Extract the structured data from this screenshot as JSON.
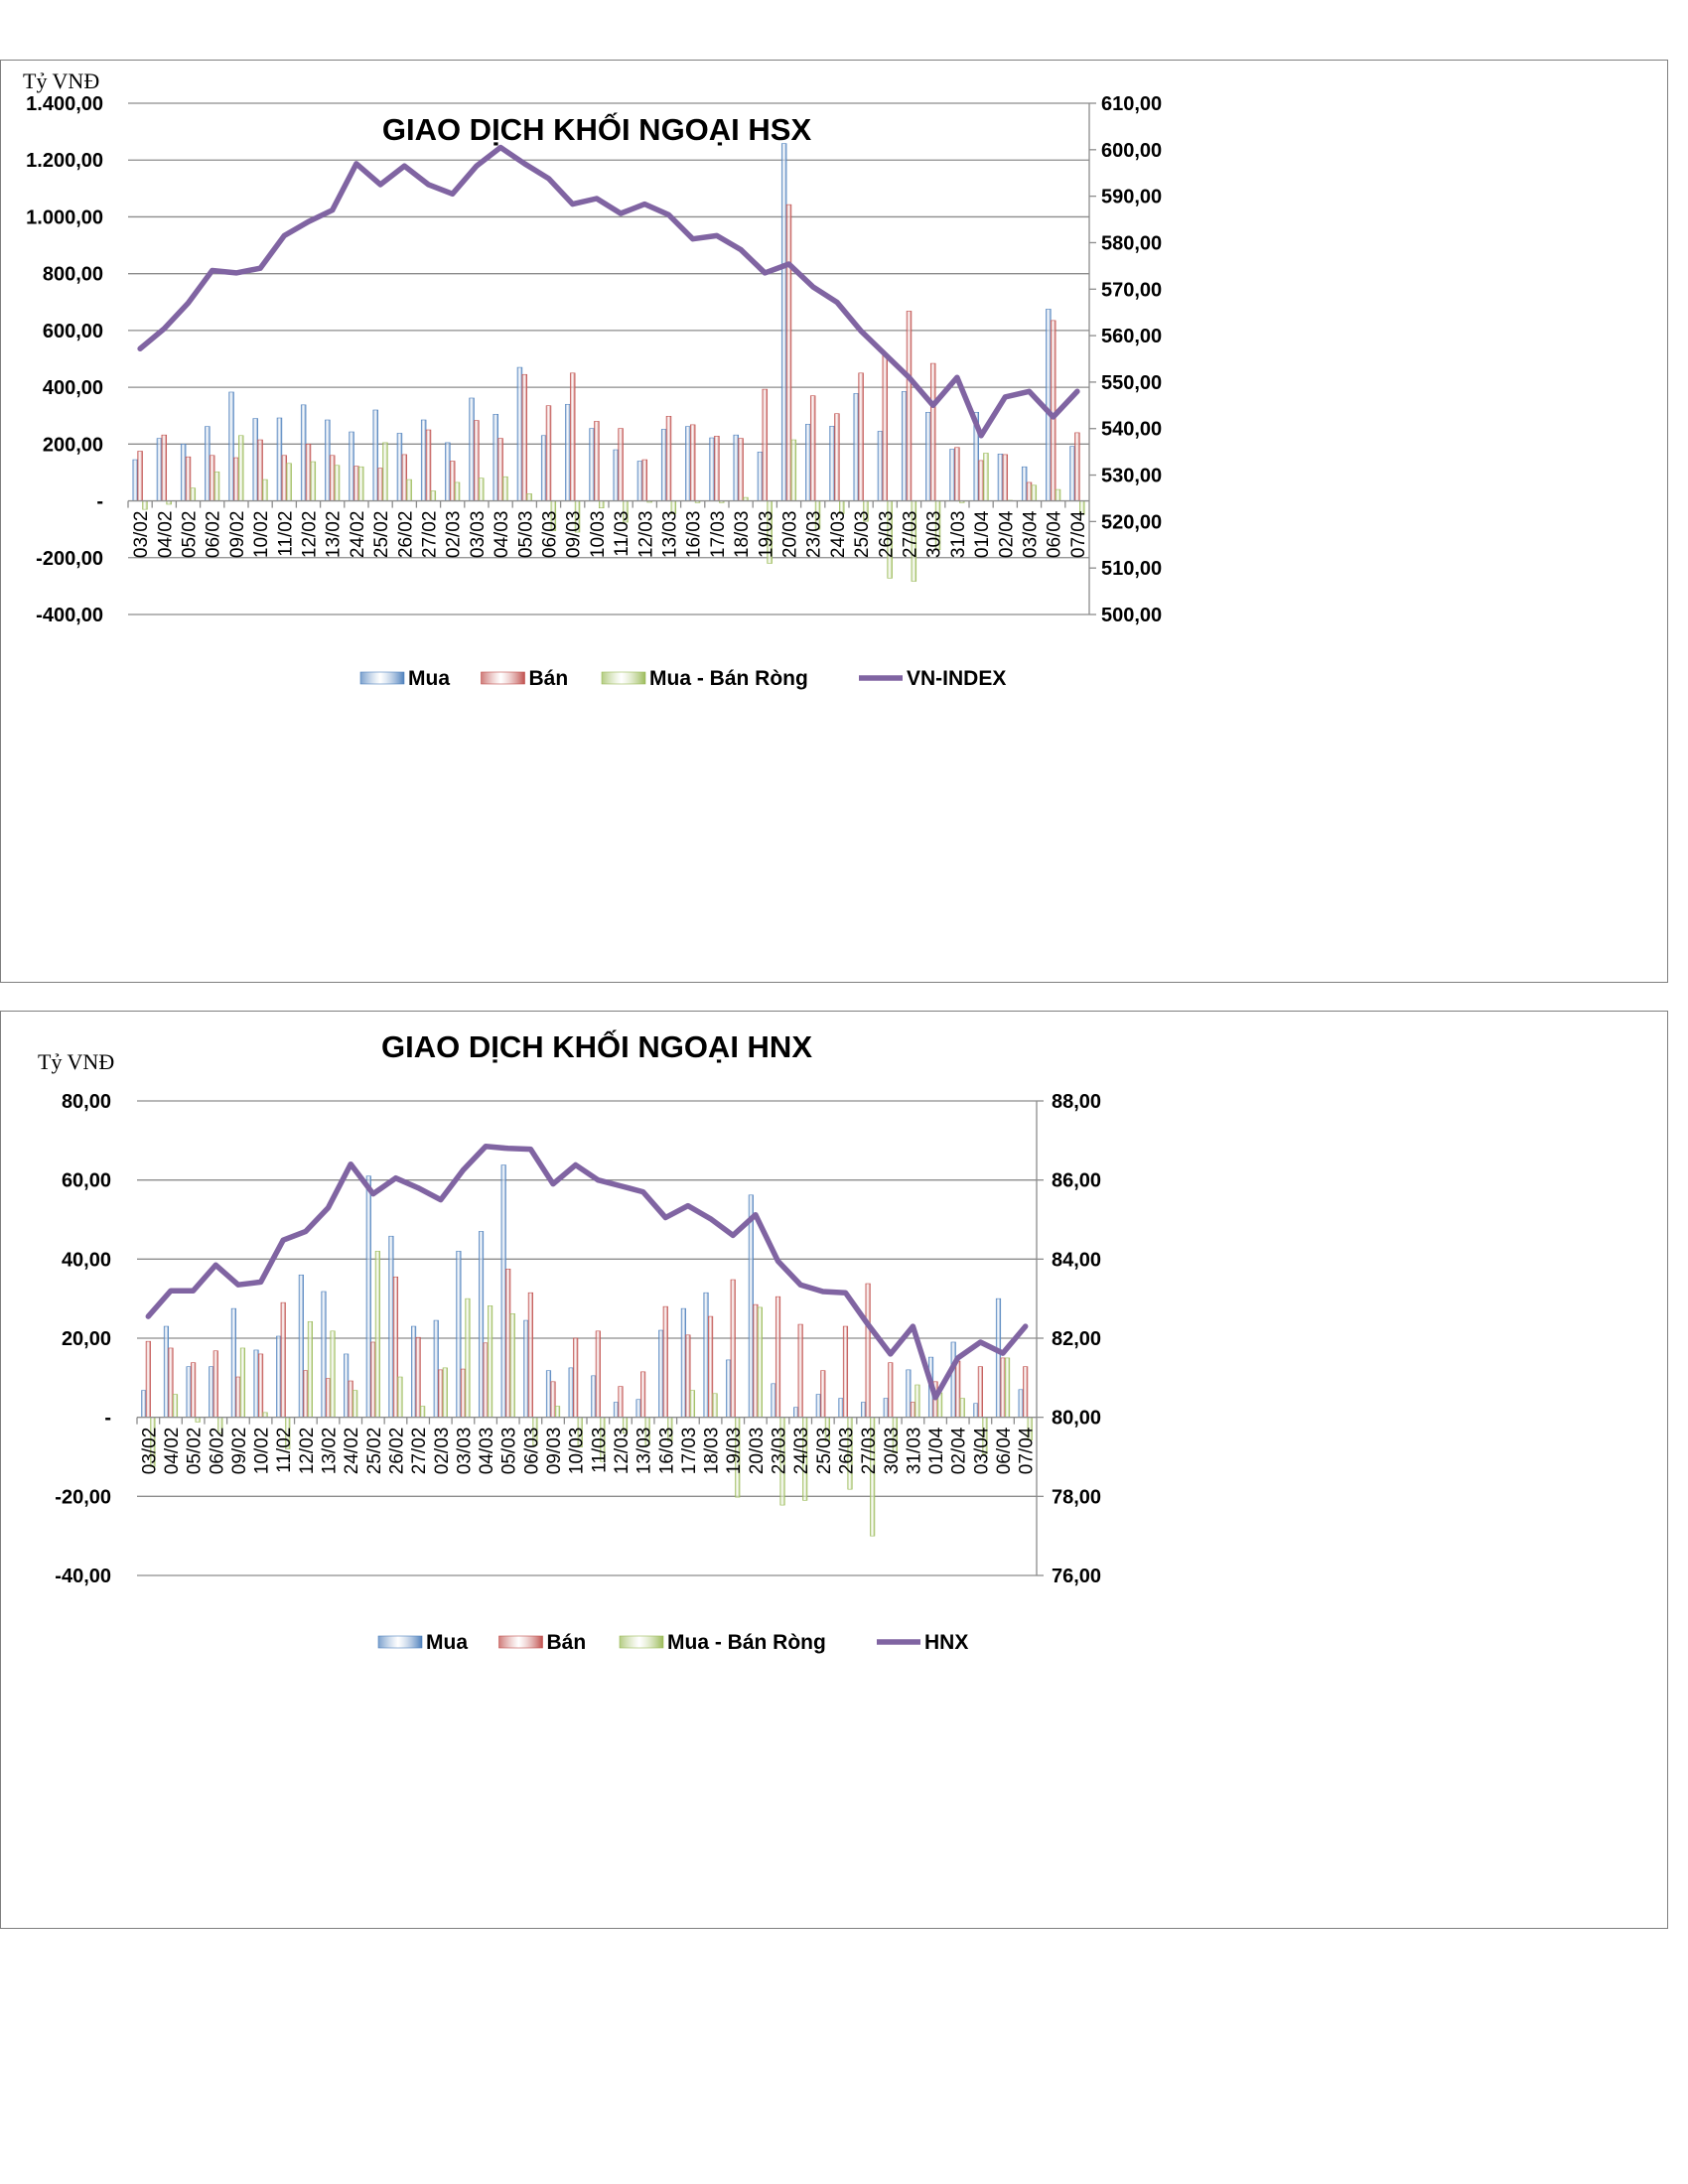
{
  "chart_data": [
    {
      "type": "bar",
      "title": "GIAO DỊCH KHỐI NGOẠI HSX",
      "unit_label": "Tỷ VNĐ",
      "categories": [
        "03/02",
        "04/02",
        "05/02",
        "06/02",
        "09/02",
        "10/02",
        "11/02",
        "12/02",
        "13/02",
        "24/02",
        "25/02",
        "26/02",
        "27/02",
        "02/03",
        "03/03",
        "04/03",
        "05/03",
        "06/03",
        "09/03",
        "10/03",
        "11/03",
        "12/03",
        "13/03",
        "16/03",
        "17/03",
        "18/03",
        "19/03",
        "20/03",
        "23/03",
        "24/03",
        "25/03",
        "26/03",
        "27/03",
        "30/03",
        "31/03",
        "01/04",
        "02/04",
        "03/04",
        "06/04",
        "07/04"
      ],
      "ylim": [
        -400,
        1400
      ],
      "y_ticks": [
        1400,
        1200,
        1000,
        800,
        600,
        400,
        200,
        0,
        -200,
        -400
      ],
      "y_tick_labels": [
        "1.400,00",
        "1.200,00",
        "1.000,00",
        "800,00",
        "600,00",
        "400,00",
        "200,00",
        "-",
        "-200,00",
        "-400,00"
      ],
      "y2lim": [
        500,
        610
      ],
      "y2_ticks": [
        610,
        600,
        590,
        580,
        570,
        560,
        550,
        540,
        530,
        520,
        510,
        500
      ],
      "y2_tick_labels": [
        "610,00",
        "600,00",
        "590,00",
        "580,00",
        "570,00",
        "560,00",
        "550,00",
        "540,00",
        "530,00",
        "520,00",
        "510,00",
        "500,00"
      ],
      "grid": true,
      "legend_position": "bottom",
      "series": [
        {
          "name": "Mua",
          "kind": "bar",
          "color": "#4f81bd",
          "values": [
            145,
            220,
            200,
            262,
            383,
            290,
            292,
            338,
            285,
            243,
            320,
            238,
            285,
            205,
            362,
            305,
            470,
            230,
            340,
            255,
            180,
            140,
            252,
            262,
            222,
            232,
            172,
            1258,
            270,
            263,
            378,
            245,
            385,
            312,
            182,
            312,
            165,
            120,
            675,
            192
          ]
        },
        {
          "name": "Bán",
          "kind": "bar",
          "color": "#c0504d",
          "values": [
            175,
            232,
            155,
            160,
            152,
            215,
            160,
            200,
            160,
            122,
            115,
            163,
            250,
            140,
            283,
            220,
            445,
            335,
            450,
            280,
            255,
            145,
            298,
            268,
            228,
            220,
            393,
            1043,
            370,
            307,
            450,
            518,
            668,
            484,
            188,
            142,
            163,
            65,
            635,
            240
          ]
        },
        {
          "name": "Mua - Bán Ròng",
          "kind": "bar",
          "color": "#9bbb59",
          "values": [
            -30,
            -12,
            45,
            102,
            230,
            75,
            132,
            138,
            125,
            120,
            205,
            75,
            35,
            65,
            80,
            85,
            25,
            -105,
            -110,
            -25,
            -75,
            -5,
            -45,
            -6,
            -6,
            12,
            -220,
            215,
            -100,
            -45,
            -72,
            -272,
            -283,
            -172,
            -6,
            168,
            2,
            55,
            40,
            -48
          ]
        },
        {
          "name": "VN-INDEX",
          "kind": "line",
          "axis": "y2",
          "color": "#8064a2",
          "values": [
            557.2,
            561.5,
            567.0,
            574.0,
            573.5,
            574.5,
            581.5,
            584.5,
            587.0,
            597.0,
            592.5,
            596.5,
            592.5,
            590.5,
            596.5,
            600.5,
            597.0,
            593.8,
            588.3,
            589.5,
            586.3,
            588.3,
            586.0,
            580.8,
            581.5,
            578.5,
            573.5,
            575.4,
            570.5,
            567.2,
            561.0,
            556.0,
            551.0,
            545.0,
            551.0,
            538.5,
            546.8,
            548.0,
            542.5,
            548.0
          ]
        }
      ]
    },
    {
      "type": "bar",
      "title": "GIAO DỊCH KHỐI NGOẠI HNX",
      "unit_label": "Tỷ VNĐ",
      "categories": [
        "03/02",
        "04/02",
        "05/02",
        "06/02",
        "09/02",
        "10/02",
        "11/02",
        "12/02",
        "13/02",
        "24/02",
        "25/02",
        "26/02",
        "27/02",
        "02/03",
        "03/03",
        "04/03",
        "05/03",
        "06/03",
        "09/03",
        "10/03",
        "11/03",
        "12/03",
        "13/03",
        "16/03",
        "17/03",
        "18/03",
        "19/03",
        "20/03",
        "23/03",
        "24/03",
        "25/03",
        "26/03",
        "27/03",
        "30/03",
        "31/03",
        "01/04",
        "02/04",
        "03/04",
        "06/04",
        "07/04"
      ],
      "ylim": [
        -40,
        80
      ],
      "y_ticks": [
        80,
        60,
        40,
        20,
        0,
        -20,
        -40
      ],
      "y_tick_labels": [
        "80,00",
        "60,00",
        "40,00",
        "20,00",
        "-",
        "-20,00",
        "-40,00"
      ],
      "y2lim": [
        76,
        88
      ],
      "y2_ticks": [
        88,
        86,
        84,
        82,
        80,
        78,
        76
      ],
      "y2_tick_labels": [
        "88,00",
        "86,00",
        "84,00",
        "82,00",
        "80,00",
        "78,00",
        "76,00"
      ],
      "grid": true,
      "legend_position": "bottom",
      "series": [
        {
          "name": "Mua",
          "kind": "bar",
          "color": "#4f81bd",
          "values": [
            6.8,
            23.0,
            12.8,
            12.8,
            27.5,
            17.0,
            20.5,
            36.0,
            31.8,
            16.0,
            61.0,
            45.8,
            23.0,
            24.5,
            42.0,
            47.0,
            63.8,
            24.5,
            11.8,
            12.5,
            10.5,
            3.8,
            4.5,
            22.0,
            27.5,
            31.5,
            14.5,
            56.2,
            8.5,
            2.5,
            5.8,
            4.8,
            3.8,
            4.8,
            12.0,
            15.2,
            19.0,
            3.5,
            30.0,
            7.0
          ]
        },
        {
          "name": "Bán",
          "kind": "bar",
          "color": "#c0504d",
          "values": [
            19.2,
            17.5,
            13.8,
            16.8,
            10.2,
            16.0,
            29.0,
            11.8,
            9.8,
            9.2,
            19.0,
            35.5,
            20.2,
            12.0,
            12.2,
            18.8,
            37.5,
            31.5,
            9.0,
            20.0,
            21.8,
            7.8,
            11.5,
            28.0,
            20.8,
            25.5,
            34.8,
            28.5,
            30.5,
            23.5,
            11.8,
            23.0,
            33.8,
            13.8,
            3.8,
            9.0,
            14.2,
            12.8,
            15.0,
            12.8
          ]
        },
        {
          "name": "Mua - Bán Ròng",
          "kind": "bar",
          "color": "#9bbb59",
          "values": [
            -12.5,
            5.8,
            -1.2,
            -4.0,
            17.5,
            1.2,
            -8.0,
            24.2,
            21.8,
            6.8,
            42.0,
            10.2,
            2.8,
            12.5,
            30.0,
            28.2,
            26.2,
            -7.0,
            2.8,
            -7.5,
            -11.2,
            -4.0,
            -7.0,
            -6.0,
            6.8,
            6.0,
            -20.2,
            27.8,
            -22.2,
            -21.0,
            -6.0,
            -18.2,
            -30.0,
            -9.0,
            8.2,
            6.2,
            4.8,
            -9.2,
            15.0,
            -5.8
          ]
        },
        {
          "name": "HNX",
          "kind": "line",
          "axis": "y2",
          "color": "#8064a2",
          "values": [
            82.55,
            83.2,
            83.2,
            83.85,
            83.35,
            83.42,
            84.48,
            84.7,
            85.3,
            86.4,
            85.65,
            86.05,
            85.8,
            85.5,
            86.25,
            86.85,
            86.8,
            86.78,
            85.9,
            86.38,
            86.0,
            85.85,
            85.7,
            85.05,
            85.35,
            85.02,
            84.6,
            85.12,
            83.95,
            83.35,
            83.18,
            83.15,
            82.35,
            81.6,
            82.3,
            80.5,
            81.5,
            81.9,
            81.62,
            82.3
          ]
        }
      ]
    }
  ]
}
